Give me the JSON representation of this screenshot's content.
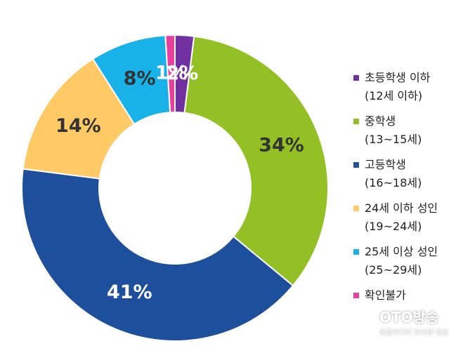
{
  "chart_data": {
    "type": "donut",
    "categories": [
      "초등학생 이하\n(12세 이하)",
      "중학생\n(13~15세)",
      "고등학생\n(16~18세)",
      "24세 이하 성인\n(19~24세)",
      "25세 이상 성인\n(25~29세)",
      "확인불가"
    ],
    "values": [
      2,
      34,
      41,
      14,
      8,
      1
    ],
    "value_labels": [
      "2%",
      "34%",
      "41%",
      "14%",
      "8%",
      "1%"
    ],
    "colors": [
      "#7030a0",
      "#92c025",
      "#1e4f9c",
      "#ffc966",
      "#18b2e8",
      "#e8409e"
    ],
    "label_colors": [
      "#ffffff",
      "#333333",
      "#ffffff",
      "#333333",
      "#333333",
      "#ffffff"
    ]
  },
  "watermark": {
    "name": "OTO방송",
    "tagline": "종합미디어 인터넷 방송"
  }
}
